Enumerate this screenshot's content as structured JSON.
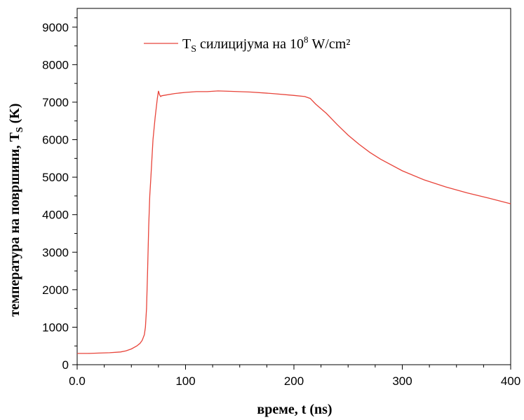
{
  "chart_data": {
    "type": "line",
    "title": "",
    "xlabel": "време, t (ns)",
    "ylabel_main": "температура на површини, T",
    "ylabel_sub": "S",
    "ylabel_unit": " (K)",
    "xlim": [
      0,
      400
    ],
    "ylim": [
      0,
      9500
    ],
    "x_ticks": [
      0,
      100,
      200,
      300,
      400
    ],
    "x_tick_labels": [
      "0.0",
      "100",
      "200",
      "300",
      "400"
    ],
    "y_ticks": [
      0,
      1000,
      2000,
      3000,
      4000,
      5000,
      6000,
      7000,
      8000,
      9000
    ],
    "y_tick_labels": [
      "0",
      "1000",
      "2000",
      "3000",
      "4000",
      "5000",
      "6000",
      "7000",
      "8000",
      "9000"
    ],
    "grid": false,
    "legend_position": "top-center",
    "series": [
      {
        "name_T": "T",
        "name_sub": "S",
        "name_mid": " силицијума на 10",
        "name_sup": "8",
        "name_tail": " W/cm²",
        "color": "#e8443a",
        "x": [
          0,
          10,
          20,
          30,
          40,
          45,
          50,
          55,
          58,
          60,
          62,
          63,
          64,
          65,
          66,
          67,
          68,
          69,
          70,
          72,
          74,
          75,
          76,
          77,
          78,
          90,
          100,
          110,
          120,
          130,
          140,
          160,
          180,
          200,
          210,
          215,
          220,
          230,
          240,
          250,
          260,
          270,
          280,
          300,
          320,
          340,
          360,
          380,
          400
        ],
        "y": [
          300,
          300,
          310,
          320,
          340,
          370,
          420,
          500,
          570,
          650,
          800,
          1000,
          1500,
          2500,
          3700,
          4500,
          5000,
          5500,
          6000,
          6600,
          7100,
          7300,
          7200,
          7150,
          7170,
          7230,
          7260,
          7280,
          7280,
          7300,
          7290,
          7270,
          7230,
          7180,
          7150,
          7100,
          6950,
          6700,
          6400,
          6120,
          5880,
          5660,
          5480,
          5170,
          4930,
          4740,
          4580,
          4440,
          4290
        ]
      }
    ]
  }
}
